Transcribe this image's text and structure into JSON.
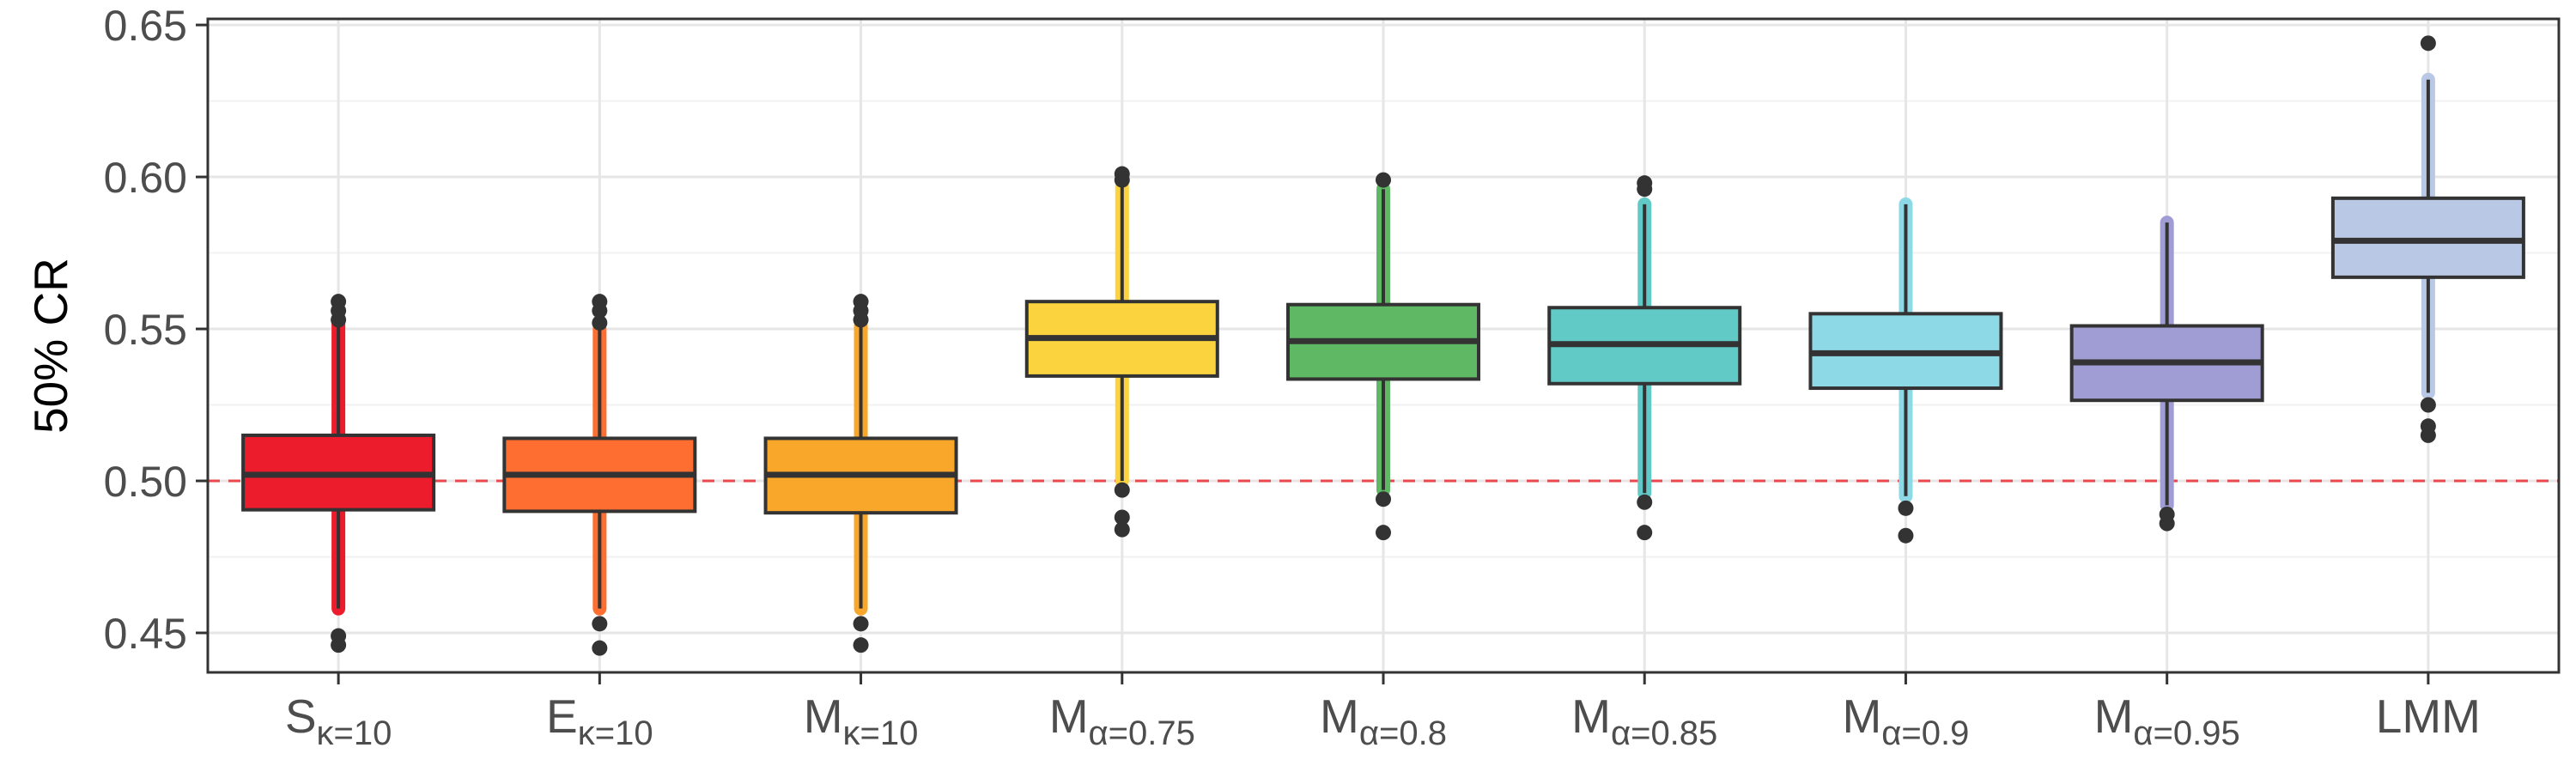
{
  "chart_data": {
    "type": "boxplot",
    "title": "",
    "xlabel": "",
    "ylabel": "50% CR",
    "ylim": [
      0.437,
      0.652
    ],
    "yticks": [
      0.45,
      0.5,
      0.55,
      0.6,
      0.65
    ],
    "ytick_labels": [
      "0.45",
      "0.50",
      "0.55",
      "0.60",
      "0.65"
    ],
    "reference_line": {
      "y": 0.5,
      "style": "dashed",
      "color": "#e8474b"
    },
    "grid": true,
    "legend": "none",
    "categories": [
      {
        "main": "S",
        "sub": "κ=10"
      },
      {
        "main": "E",
        "sub": "κ=10"
      },
      {
        "main": "M",
        "sub": "κ=10"
      },
      {
        "main": "M",
        "sub": "α=0.75"
      },
      {
        "main": "M",
        "sub": "α=0.8"
      },
      {
        "main": "M",
        "sub": "α=0.85"
      },
      {
        "main": "M",
        "sub": "α=0.9"
      },
      {
        "main": "M",
        "sub": "α=0.95"
      },
      {
        "main": "LMM",
        "sub": ""
      }
    ],
    "boxes": [
      {
        "q1": 0.4905,
        "median": 0.502,
        "q3": 0.515,
        "whisker_low": 0.458,
        "whisker_high": 0.552,
        "color": "#ec1c2c",
        "outliers": [
          0.446,
          0.449,
          0.553,
          0.556,
          0.559
        ]
      },
      {
        "q1": 0.49,
        "median": 0.502,
        "q3": 0.514,
        "whisker_low": 0.458,
        "whisker_high": 0.55,
        "color": "#ff6e31",
        "outliers": [
          0.445,
          0.453,
          0.552,
          0.556,
          0.559
        ]
      },
      {
        "q1": 0.4895,
        "median": 0.502,
        "q3": 0.514,
        "whisker_low": 0.458,
        "whisker_high": 0.551,
        "color": "#f9a72b",
        "outliers": [
          0.446,
          0.453,
          0.553,
          0.556,
          0.559
        ]
      },
      {
        "q1": 0.5345,
        "median": 0.547,
        "q3": 0.559,
        "whisker_low": 0.5,
        "whisker_high": 0.597,
        "color": "#fad33e",
        "outliers": [
          0.484,
          0.488,
          0.497,
          0.599,
          0.601
        ]
      },
      {
        "q1": 0.5335,
        "median": 0.546,
        "q3": 0.558,
        "whisker_low": 0.497,
        "whisker_high": 0.596,
        "color": "#5fb964",
        "outliers": [
          0.483,
          0.494,
          0.599
        ]
      },
      {
        "q1": 0.532,
        "median": 0.545,
        "q3": 0.557,
        "whisker_low": 0.496,
        "whisker_high": 0.591,
        "color": "#62cac6",
        "outliers": [
          0.483,
          0.493,
          0.596,
          0.598
        ]
      },
      {
        "q1": 0.5305,
        "median": 0.542,
        "q3": 0.555,
        "whisker_low": 0.495,
        "whisker_high": 0.591,
        "color": "#8ed9e6",
        "outliers": [
          0.482,
          0.491
        ]
      },
      {
        "q1": 0.5265,
        "median": 0.539,
        "q3": 0.551,
        "whisker_low": 0.492,
        "whisker_high": 0.585,
        "color": "#9f9dd3",
        "outliers": [
          0.486,
          0.489
        ]
      },
      {
        "q1": 0.567,
        "median": 0.579,
        "q3": 0.593,
        "whisker_low": 0.529,
        "whisker_high": 0.632,
        "color": "#b9c8e4",
        "outliers": [
          0.515,
          0.518,
          0.525,
          0.644
        ]
      }
    ]
  }
}
